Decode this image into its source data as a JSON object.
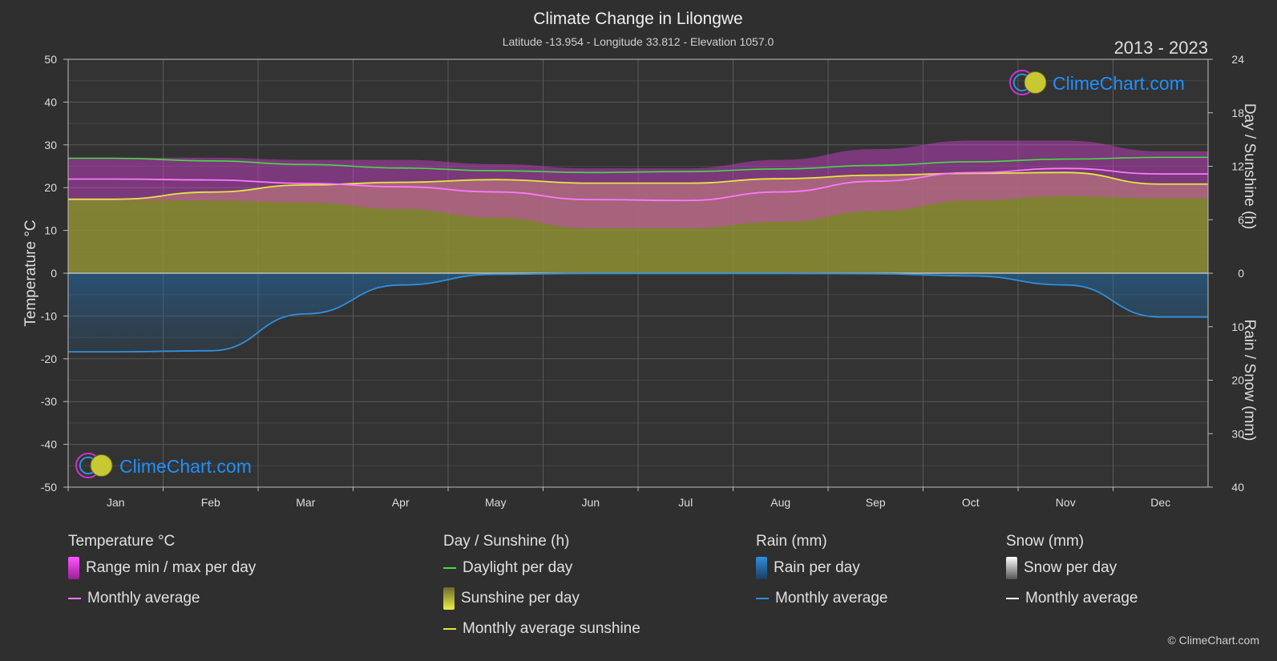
{
  "header": {
    "title": "Climate Change in Lilongwe",
    "subtitle": "Latitude -13.954 - Longitude 33.812 - Elevation 1057.0",
    "period": "2013 - 2023"
  },
  "watermark": {
    "text": "ClimeChart.com"
  },
  "copyright": "© ClimeChart.com",
  "colors": {
    "background": "#2f2f2f",
    "temp_range": "#d63fd6",
    "temp_avg": "#ff77ff",
    "daylight": "#44dd44",
    "sunshine_fill": "#a3a33a",
    "sunshine_avg": "#e6e640",
    "rain_fill": "#1f6aa8",
    "rain_avg": "#2f8fe0",
    "snow_avg": "#ffffff",
    "brand_blue": "#1e90ff",
    "brand_magenta": "#cc33cc"
  },
  "legend": {
    "temperature": {
      "heading": "Temperature °C",
      "items": [
        {
          "label": "Range min / max per day",
          "swatch": "box",
          "color": "#e040e0"
        },
        {
          "label": "Monthly average",
          "swatch": "line",
          "color": "#ff77ff"
        }
      ]
    },
    "sunshine": {
      "heading": "Day / Sunshine (h)",
      "items": [
        {
          "label": "Daylight per day",
          "swatch": "line",
          "color": "#44dd44"
        },
        {
          "label": "Sunshine per day",
          "swatch": "box",
          "color": "#d6d640"
        },
        {
          "label": "Monthly average sunshine",
          "swatch": "line",
          "color": "#e6e640"
        }
      ]
    },
    "rain": {
      "heading": "Rain (mm)",
      "items": [
        {
          "label": "Rain per day",
          "swatch": "box",
          "color": "#2f8fe0"
        },
        {
          "label": "Monthly average",
          "swatch": "line",
          "color": "#2f8fe0"
        }
      ]
    },
    "snow": {
      "heading": "Snow (mm)",
      "items": [
        {
          "label": "Snow per day",
          "swatch": "box",
          "color": "#dddddd"
        },
        {
          "label": "Monthly average",
          "swatch": "line",
          "color": "#ffffff"
        }
      ]
    }
  },
  "chart_data": {
    "type": "area",
    "title": "Climate Change in Lilongwe",
    "categories": [
      "Jan",
      "Feb",
      "Mar",
      "Apr",
      "May",
      "Jun",
      "Jul",
      "Aug",
      "Sep",
      "Oct",
      "Nov",
      "Dec"
    ],
    "axes": {
      "left": {
        "label": "Temperature °C",
        "range": [
          -50,
          50
        ],
        "ticks": [
          50,
          40,
          30,
          20,
          10,
          0,
          -10,
          -20,
          -30,
          -40,
          -50
        ]
      },
      "right_top": {
        "label": "Day / Sunshine (h)",
        "range": [
          0,
          24
        ],
        "ticks": [
          24,
          18,
          12,
          6,
          0
        ]
      },
      "right_bottom": {
        "label": "Rain / Snow (mm)",
        "range": [
          0,
          40
        ],
        "ticks": [
          0,
          10,
          20,
          30,
          40
        ]
      }
    },
    "grid": true,
    "series": [
      {
        "name": "Range min / max per day",
        "kind": "band",
        "axis": "temperature",
        "min": [
          17,
          17,
          16.5,
          15,
          13,
          10.5,
          10.5,
          12,
          14.5,
          17,
          18,
          17.5
        ],
        "max": [
          27,
          27,
          26.5,
          26.5,
          25.5,
          24.5,
          24.5,
          26.5,
          29,
          31,
          31,
          28.5
        ]
      },
      {
        "name": "Monthly average",
        "kind": "line",
        "axis": "temperature",
        "values": [
          22,
          21.8,
          21,
          20.2,
          19,
          17.2,
          17,
          19,
          21.5,
          23.5,
          24.5,
          23.2
        ]
      },
      {
        "name": "Daylight per day",
        "kind": "line",
        "axis": "sunshine",
        "values": [
          12.9,
          12.6,
          12.2,
          11.8,
          11.5,
          11.3,
          11.4,
          11.7,
          12.1,
          12.5,
          12.8,
          13.0
        ]
      },
      {
        "name": "Sunshine per day",
        "kind": "area",
        "axis": "sunshine",
        "values": [
          8.3,
          9.1,
          9.9,
          10.2,
          10.5,
          10.1,
          10.1,
          10.6,
          11.0,
          11.2,
          11.3,
          10.0
        ]
      },
      {
        "name": "Monthly average sunshine",
        "kind": "line",
        "axis": "sunshine",
        "values": [
          8.3,
          9.1,
          9.9,
          10.2,
          10.5,
          10.1,
          10.1,
          10.6,
          11.0,
          11.2,
          11.3,
          10.0
        ]
      },
      {
        "name": "Rain per day",
        "kind": "area",
        "axis": "rain",
        "values": [
          14.7,
          14.5,
          7.6,
          2.2,
          0.2,
          0.05,
          0.05,
          0.05,
          0.1,
          0.5,
          2.2,
          8.2
        ]
      },
      {
        "name": "Monthly average",
        "kind": "line",
        "axis": "rain",
        "values": [
          14.7,
          14.5,
          7.6,
          2.2,
          0.2,
          0.05,
          0.05,
          0.05,
          0.1,
          0.5,
          2.2,
          8.2
        ]
      }
    ]
  }
}
